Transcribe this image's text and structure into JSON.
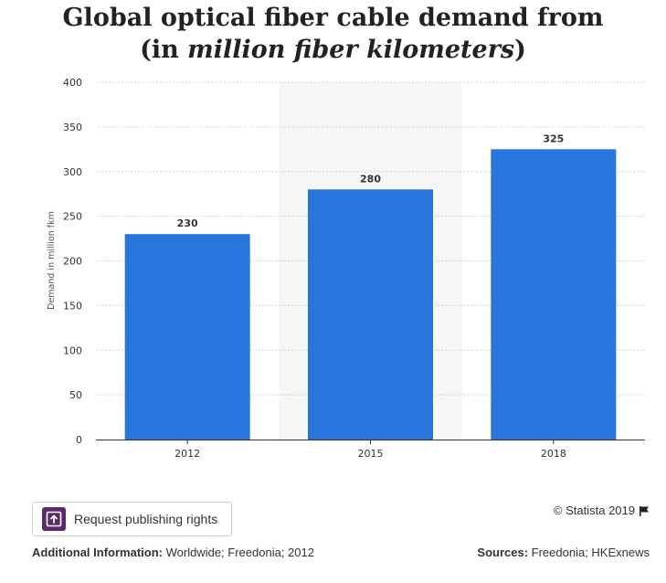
{
  "chart_data": {
    "type": "bar",
    "title_line1": "Global optical fiber cable demand from",
    "title_line2_prefix": "(in ",
    "title_line2_italic": "million fiber kilometers",
    "title_line2_suffix": ")",
    "ylabel": "Demand in million fkm",
    "categories": [
      "2012",
      "2015",
      "2018"
    ],
    "values": [
      230,
      280,
      325
    ],
    "ylim": [
      0,
      400
    ],
    "yticks": [
      0,
      50,
      100,
      150,
      200,
      250,
      300,
      350,
      400
    ],
    "grid": true,
    "highlighted_category": "2015",
    "colors": {
      "bar": "#2876dd",
      "highlight_band": "#f6f6f6",
      "grid": "#cccccc"
    }
  },
  "publish_button": {
    "label": "Request publishing rights",
    "icon": "publish-icon"
  },
  "copyright": {
    "text": "© Statista 2019",
    "icon": "flag-icon"
  },
  "additional_info": {
    "label": "Additional Information:",
    "text": " Worldwide; Freedonia; 2012"
  },
  "sources": {
    "label": "Sources:",
    "text": " Freedonia; HKExnews"
  }
}
